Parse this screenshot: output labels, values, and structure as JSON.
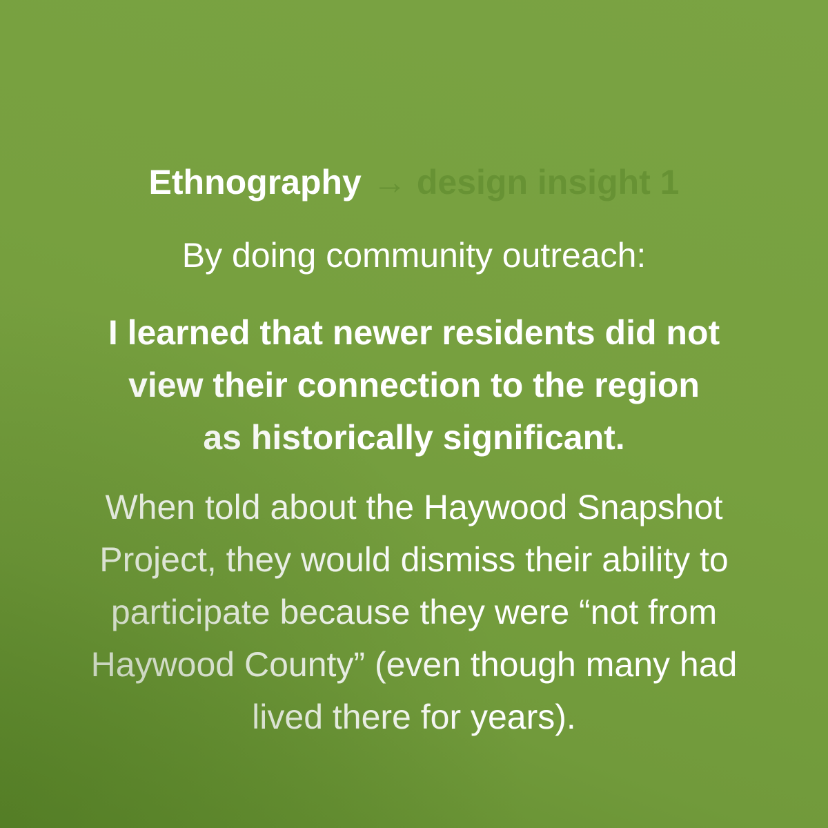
{
  "heading": {
    "primary": "Ethnography",
    "arrow": "→",
    "secondary": "design insight 1"
  },
  "intro": "By doing community outreach:",
  "finding_lines": [
    "I learned that newer residents did not",
    "view their connection to the region",
    "as historically significant."
  ],
  "detail_lines": [
    "When told about the Haywood Snapshot",
    "Project, they would dismiss their ability to",
    "participate because they were “not from",
    "Haywood County” (even though many had",
    "lived there for years)."
  ],
  "colors": {
    "background": "#77a03f",
    "text": "#ffffff",
    "muted_text": "#679234"
  }
}
